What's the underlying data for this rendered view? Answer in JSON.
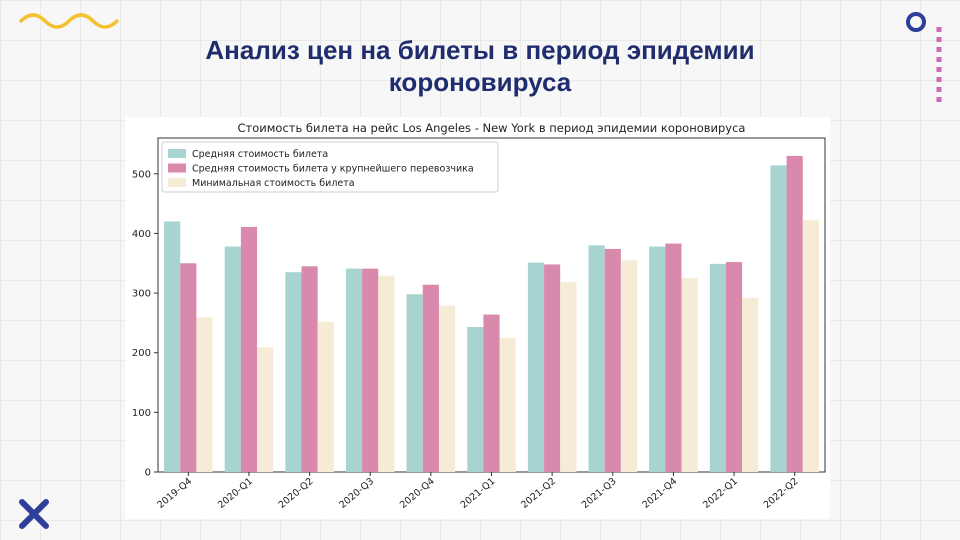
{
  "slide": {
    "title_line1": "Анализ цен на билеты в период эпидемии",
    "title_line2": "короновируса"
  },
  "decorations": {
    "top_left": "wave-icon",
    "top_right": "circle-icon",
    "right_dots": "dotted-line-icon",
    "bottom_left": "cross-icon"
  },
  "colors": {
    "title": "#1f2d6e",
    "teal": "#a7d3d0",
    "pink": "#d98aac",
    "cream": "#f5ebd6",
    "accent_yellow": "#f2c232",
    "accent_blue": "#2e3f9a",
    "accent_pink": "#c96bb9"
  },
  "chart_data": {
    "type": "bar",
    "title": "Стоимость билета на рейс Los Angeles - New York в период эпидемии короновируса",
    "xlabel": "",
    "ylabel": "",
    "categories": [
      "2019-Q4",
      "2020-Q1",
      "2020-Q2",
      "2020-Q3",
      "2020-Q4",
      "2021-Q1",
      "2021-Q2",
      "2021-Q3",
      "2021-Q4",
      "2022-Q1",
      "2022-Q2"
    ],
    "series": [
      {
        "name": "Средняя стоимость билета",
        "color": "#a7d3d0",
        "values": [
          420,
          378,
          335,
          341,
          298,
          243,
          351,
          380,
          378,
          349,
          514
        ]
      },
      {
        "name": "Средняя стоимость билета у крупнейшего перевозчика",
        "color": "#d98aac",
        "values": [
          350,
          411,
          345,
          341,
          314,
          264,
          348,
          374,
          383,
          352,
          530
        ]
      },
      {
        "name": "Минимальная стоимость билета",
        "color": "#f5ebd6",
        "values": [
          259,
          209,
          252,
          329,
          279,
          225,
          318,
          355,
          325,
          292,
          422
        ]
      }
    ],
    "ylim": [
      0,
      560
    ],
    "yticks": [
      0,
      100,
      200,
      300,
      400,
      500
    ],
    "legend_position": "top-left",
    "grid": false
  }
}
